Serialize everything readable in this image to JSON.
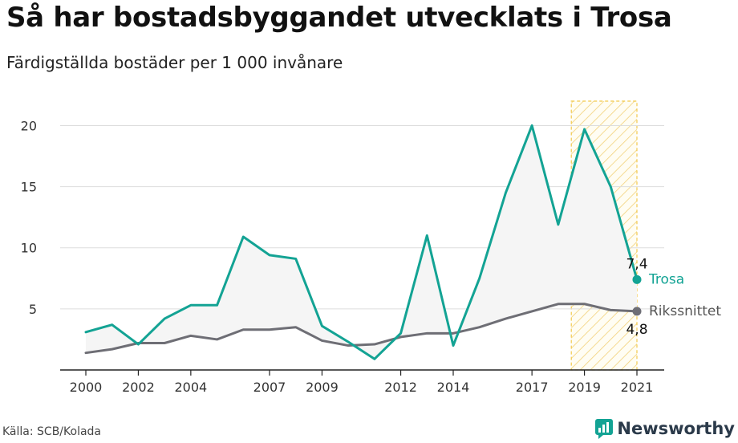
{
  "title": "Så har bostadsbyggandet utvecklats i Trosa",
  "subtitle": "Färdigställda bostäder per 1 000 invånare",
  "source": "Källa: SCB/Kolada",
  "brand": "Newsworthy",
  "colors": {
    "trosa": "#13a394",
    "national": "#6e6e75",
    "highlight_stroke": "#f2c94c",
    "fill": "#f5f5f5",
    "grid": "#dddddd"
  },
  "chart_data": {
    "type": "line",
    "x": [
      2000,
      2001,
      2002,
      2003,
      2004,
      2005,
      2006,
      2007,
      2008,
      2009,
      2010,
      2011,
      2012,
      2013,
      2014,
      2015,
      2016,
      2017,
      2018,
      2019,
      2020,
      2021
    ],
    "x_ticks": [
      "2000",
      "2002",
      "2004",
      "2007",
      "2009",
      "2012",
      "2014",
      "2017",
      "2019",
      "2021"
    ],
    "y_ticks": [
      "5",
      "10",
      "15",
      "20"
    ],
    "ylim": [
      0,
      22
    ],
    "grid": true,
    "highlight_range": [
      2018.5,
      2021
    ],
    "series": [
      {
        "name": "Trosa",
        "values": [
          3.1,
          3.7,
          2.1,
          4.2,
          5.3,
          5.3,
          10.9,
          9.4,
          9.1,
          3.6,
          2.3,
          0.9,
          3.0,
          11.0,
          2.0,
          7.5,
          14.5,
          20.0,
          11.9,
          19.7,
          15.0,
          7.4
        ],
        "end_label": "7,4"
      },
      {
        "name": "Rikssnittet",
        "values": [
          1.4,
          1.7,
          2.2,
          2.2,
          2.8,
          2.5,
          3.3,
          3.3,
          3.5,
          2.4,
          2.0,
          2.1,
          2.7,
          3.0,
          3.0,
          3.5,
          4.2,
          4.8,
          5.4,
          5.4,
          4.9,
          4.8
        ],
        "end_label": "4,8"
      }
    ]
  }
}
